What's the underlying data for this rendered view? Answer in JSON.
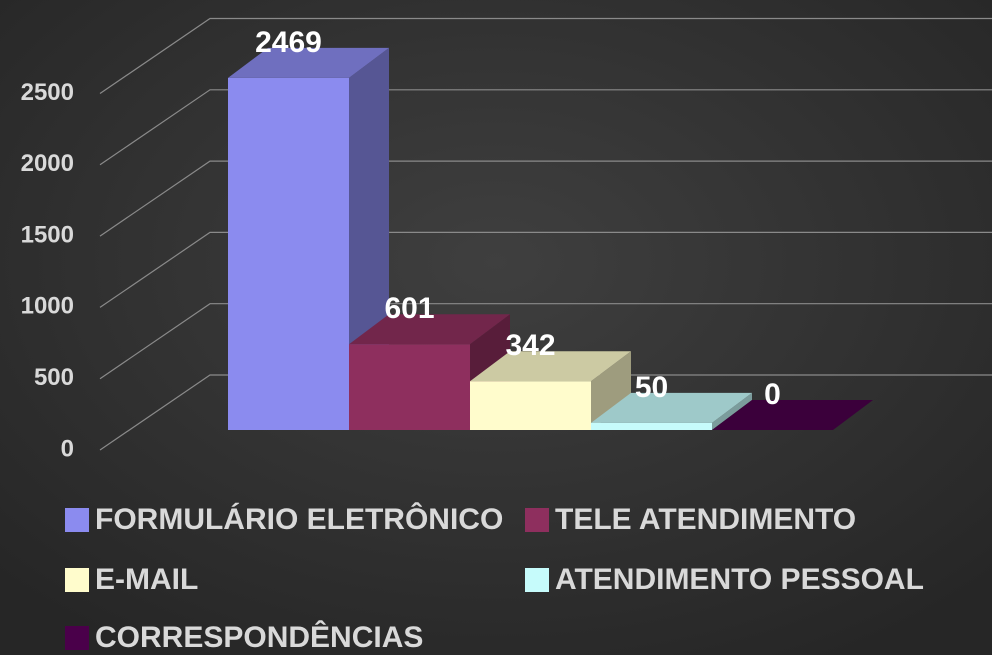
{
  "chart_data": {
    "type": "bar",
    "categories": [
      "FORMULÁRIO ELETRÔNICO",
      "TELE ATENDIMENTO",
      "E-MAIL",
      "ATENDIMENTO PESSOAL",
      "CORRESPONDÊNCIAS"
    ],
    "values": [
      2469,
      601,
      342,
      50,
      0
    ],
    "colors": [
      "#8b8bef",
      "#8e2f5e",
      "#fffccc",
      "#c6fbfb",
      "#4a004a"
    ],
    "ylim": [
      0,
      2500
    ],
    "yticks": [
      0,
      500,
      1000,
      1500,
      2000,
      2500
    ],
    "grid": true,
    "legend": "bottom"
  }
}
